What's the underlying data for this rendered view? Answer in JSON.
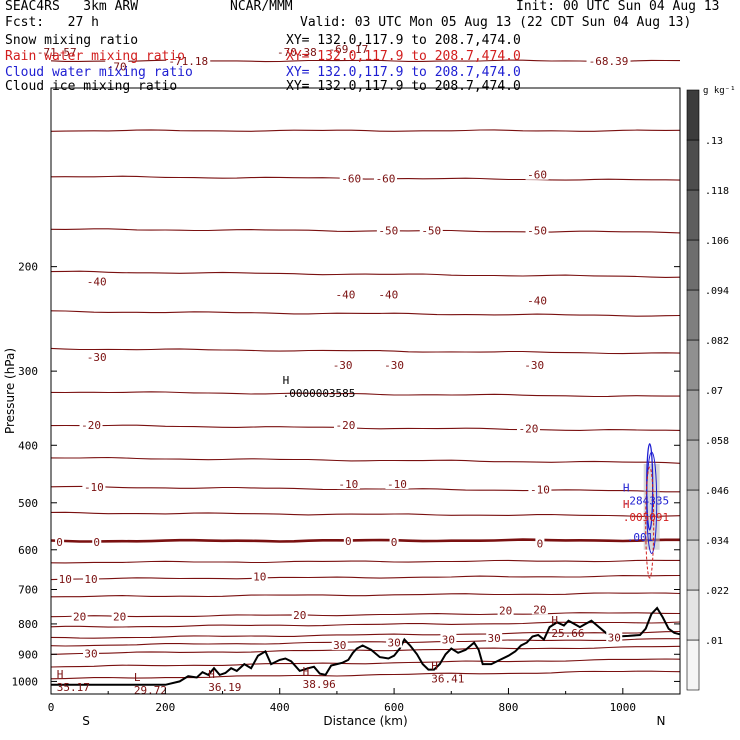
{
  "header": {
    "model": "SEAC4RS   3km ARW",
    "org": "NCAR/MMM",
    "init": "Init: 00 UTC Sun 04 Aug 13",
    "fcst": "Fcst:   27 h",
    "valid": "Valid: 03 UTC Mon 05 Aug 13 (22 CDT Sun 04 Aug 13)",
    "snow_label": "Snow mixing ratio",
    "snow_xy": "XY= 132.0,117.9 to 208.7,474.0",
    "rain_label": "Rain water mixing ratio",
    "rain_xy": "XY= 132.0,117.9 to 208.7,474.0",
    "cloud_label": "Cloud water mixing ratio",
    "cloud_xy": "XY= 132.0,117.9 to 208.7,474.0",
    "ice_label": "Cloud ice mixing ratio",
    "ice_xy": "XY= 132.0,117.9 to 208.7,474.0"
  },
  "colors": {
    "temperature": "#7a1010",
    "terrain": "#000000",
    "rain": "#d21e1e",
    "cloud": "#1e1ed2"
  },
  "chart_data": {
    "type": "cross-section",
    "xlabel": "Distance (km)",
    "ylabel": "Pressure (hPa)",
    "xlim": [
      0,
      1100
    ],
    "ylim": [
      1050,
      100
    ],
    "y_scale": "log",
    "xticks": [
      "0",
      "200",
      "400",
      "600",
      "800",
      "1000"
    ],
    "yticks": [
      "200",
      "300",
      "400",
      "500",
      "600",
      "700",
      "800",
      "900",
      "1000"
    ],
    "left_end_label": "S",
    "right_end_label": "N",
    "colorbar": {
      "unit": "g kg⁻¹",
      "ticks": [
        ".01",
        ".022",
        ".034",
        ".046",
        ".058",
        ".07",
        ".082",
        ".094",
        ".106",
        ".118",
        ".13"
      ]
    },
    "temperature_contour_labels": [
      {
        "x": 10,
        "p": 87,
        "text": "-71.57"
      },
      {
        "x": 115,
        "p": 92,
        "text": "-70"
      },
      {
        "x": 240,
        "p": 90,
        "text": "-71.18"
      },
      {
        "x": 430,
        "p": 87,
        "text": "-70.38"
      },
      {
        "x": 520,
        "p": 86,
        "text": "-69.17"
      },
      {
        "x": 975,
        "p": 90,
        "text": "-68.39"
      },
      {
        "x": 525,
        "p": 142,
        "text": "-60"
      },
      {
        "x": 585,
        "p": 142,
        "text": "-60"
      },
      {
        "x": 850,
        "p": 140,
        "text": "-60"
      },
      {
        "x": 590,
        "p": 174,
        "text": "-50"
      },
      {
        "x": 665,
        "p": 174,
        "text": "-50"
      },
      {
        "x": 850,
        "p": 174,
        "text": "-50"
      },
      {
        "x": 80,
        "p": 212,
        "text": "-40"
      },
      {
        "x": 515,
        "p": 223,
        "text": "-40"
      },
      {
        "x": 590,
        "p": 223,
        "text": "-40"
      },
      {
        "x": 850,
        "p": 228,
        "text": "-40"
      },
      {
        "x": 80,
        "p": 284,
        "text": "-30"
      },
      {
        "x": 510,
        "p": 293,
        "text": "-30"
      },
      {
        "x": 600,
        "p": 293,
        "text": "-30"
      },
      {
        "x": 845,
        "p": 293,
        "text": "-30"
      },
      {
        "x": 70,
        "p": 370,
        "text": "-20"
      },
      {
        "x": 515,
        "p": 370,
        "text": "-20"
      },
      {
        "x": 835,
        "p": 375,
        "text": "-20"
      },
      {
        "x": 75,
        "p": 470,
        "text": "-10"
      },
      {
        "x": 520,
        "p": 465,
        "text": "-10"
      },
      {
        "x": 605,
        "p": 465,
        "text": "-10"
      },
      {
        "x": 855,
        "p": 475,
        "text": "-10"
      },
      {
        "x": 15,
        "p": 582,
        "text": "0"
      },
      {
        "x": 80,
        "p": 582,
        "text": "0"
      },
      {
        "x": 520,
        "p": 580,
        "text": "0"
      },
      {
        "x": 600,
        "p": 582,
        "text": "0"
      },
      {
        "x": 855,
        "p": 586,
        "text": "0"
      },
      {
        "x": 25,
        "p": 672,
        "text": "10"
      },
      {
        "x": 70,
        "p": 672,
        "text": "10"
      },
      {
        "x": 365,
        "p": 665,
        "text": "10"
      },
      {
        "x": 50,
        "p": 778,
        "text": "20"
      },
      {
        "x": 120,
        "p": 778,
        "text": "20"
      },
      {
        "x": 435,
        "p": 773,
        "text": "20"
      },
      {
        "x": 795,
        "p": 760,
        "text": "20"
      },
      {
        "x": 855,
        "p": 756,
        "text": "20"
      },
      {
        "x": 70,
        "p": 898,
        "text": "30"
      },
      {
        "x": 505,
        "p": 868,
        "text": "30"
      },
      {
        "x": 600,
        "p": 860,
        "text": "30"
      },
      {
        "x": 695,
        "p": 850,
        "text": "30"
      },
      {
        "x": 775,
        "p": 845,
        "text": "30"
      },
      {
        "x": 985,
        "p": 843,
        "text": "30"
      }
    ],
    "extrema_labels": [
      {
        "x": 405,
        "p": 320,
        "kind": "H",
        "value": ".0000003585",
        "color": "#000000"
      },
      {
        "x": 10,
        "p": 1003,
        "kind": "H",
        "value": "35.17",
        "color": "#7a1010"
      },
      {
        "x": 145,
        "p": 1013,
        "kind": "L",
        "value": "29.72",
        "color": "#7a1010"
      },
      {
        "x": 275,
        "p": 1003,
        "kind": "H",
        "value": "36.19",
        "color": "#7a1010"
      },
      {
        "x": 440,
        "p": 990,
        "kind": "H",
        "value": "38.96",
        "color": "#7a1010"
      },
      {
        "x": 665,
        "p": 970,
        "kind": "H",
        "value": "36.41",
        "color": "#7a1010"
      },
      {
        "x": 875,
        "p": 813,
        "kind": "H",
        "value": "25.66",
        "color": "#7a1010"
      },
      {
        "x": 1000,
        "p": 486,
        "kind": "H",
        "value": ".284335",
        "color": "#1e1ed2"
      },
      {
        "x": 1000,
        "p": 518,
        "kind": "H",
        "value": ".005091",
        "color": "#d21e1e"
      },
      {
        "x": 1007,
        "p": 560,
        "kind": "",
        "value": ".001",
        "color": "#1e1ed2"
      }
    ],
    "terrain_profile": [
      {
        "x": 0,
        "p": 1013
      },
      {
        "x": 200,
        "p": 1013
      },
      {
        "x": 225,
        "p": 1000
      },
      {
        "x": 240,
        "p": 980
      },
      {
        "x": 255,
        "p": 985
      },
      {
        "x": 265,
        "p": 965
      },
      {
        "x": 275,
        "p": 975
      },
      {
        "x": 285,
        "p": 950
      },
      {
        "x": 295,
        "p": 975
      },
      {
        "x": 305,
        "p": 968
      },
      {
        "x": 315,
        "p": 950
      },
      {
        "x": 325,
        "p": 960
      },
      {
        "x": 338,
        "p": 935
      },
      {
        "x": 350,
        "p": 950
      },
      {
        "x": 362,
        "p": 905
      },
      {
        "x": 375,
        "p": 890
      },
      {
        "x": 385,
        "p": 935
      },
      {
        "x": 400,
        "p": 920
      },
      {
        "x": 410,
        "p": 915
      },
      {
        "x": 420,
        "p": 925
      },
      {
        "x": 435,
        "p": 960
      },
      {
        "x": 450,
        "p": 950
      },
      {
        "x": 460,
        "p": 945
      },
      {
        "x": 470,
        "p": 970
      },
      {
        "x": 480,
        "p": 975
      },
      {
        "x": 490,
        "p": 940
      },
      {
        "x": 500,
        "p": 935
      },
      {
        "x": 510,
        "p": 930
      },
      {
        "x": 520,
        "p": 920
      },
      {
        "x": 528,
        "p": 895
      },
      {
        "x": 535,
        "p": 880
      },
      {
        "x": 545,
        "p": 870
      },
      {
        "x": 560,
        "p": 885
      },
      {
        "x": 575,
        "p": 910
      },
      {
        "x": 590,
        "p": 915
      },
      {
        "x": 600,
        "p": 905
      },
      {
        "x": 610,
        "p": 880
      },
      {
        "x": 618,
        "p": 850
      },
      {
        "x": 628,
        "p": 870
      },
      {
        "x": 640,
        "p": 900
      },
      {
        "x": 650,
        "p": 935
      },
      {
        "x": 660,
        "p": 955
      },
      {
        "x": 670,
        "p": 955
      },
      {
        "x": 680,
        "p": 935
      },
      {
        "x": 690,
        "p": 900
      },
      {
        "x": 700,
        "p": 880
      },
      {
        "x": 712,
        "p": 895
      },
      {
        "x": 725,
        "p": 885
      },
      {
        "x": 740,
        "p": 860
      },
      {
        "x": 748,
        "p": 885
      },
      {
        "x": 755,
        "p": 935
      },
      {
        "x": 770,
        "p": 935
      },
      {
        "x": 785,
        "p": 920
      },
      {
        "x": 800,
        "p": 905
      },
      {
        "x": 812,
        "p": 890
      },
      {
        "x": 822,
        "p": 870
      },
      {
        "x": 832,
        "p": 860
      },
      {
        "x": 842,
        "p": 840
      },
      {
        "x": 852,
        "p": 835
      },
      {
        "x": 862,
        "p": 850
      },
      {
        "x": 872,
        "p": 810
      },
      {
        "x": 885,
        "p": 795
      },
      {
        "x": 897,
        "p": 805
      },
      {
        "x": 905,
        "p": 790
      },
      {
        "x": 915,
        "p": 800
      },
      {
        "x": 925,
        "p": 810
      },
      {
        "x": 935,
        "p": 800
      },
      {
        "x": 945,
        "p": 790
      },
      {
        "x": 955,
        "p": 805
      },
      {
        "x": 965,
        "p": 820
      },
      {
        "x": 975,
        "p": 835
      },
      {
        "x": 990,
        "p": 840
      },
      {
        "x": 1010,
        "p": 838
      },
      {
        "x": 1030,
        "p": 835
      },
      {
        "x": 1040,
        "p": 815
      },
      {
        "x": 1050,
        "p": 770
      },
      {
        "x": 1060,
        "p": 752
      },
      {
        "x": 1070,
        "p": 780
      },
      {
        "x": 1080,
        "p": 815
      },
      {
        "x": 1090,
        "p": 828
      },
      {
        "x": 1100,
        "p": 833
      }
    ]
  }
}
